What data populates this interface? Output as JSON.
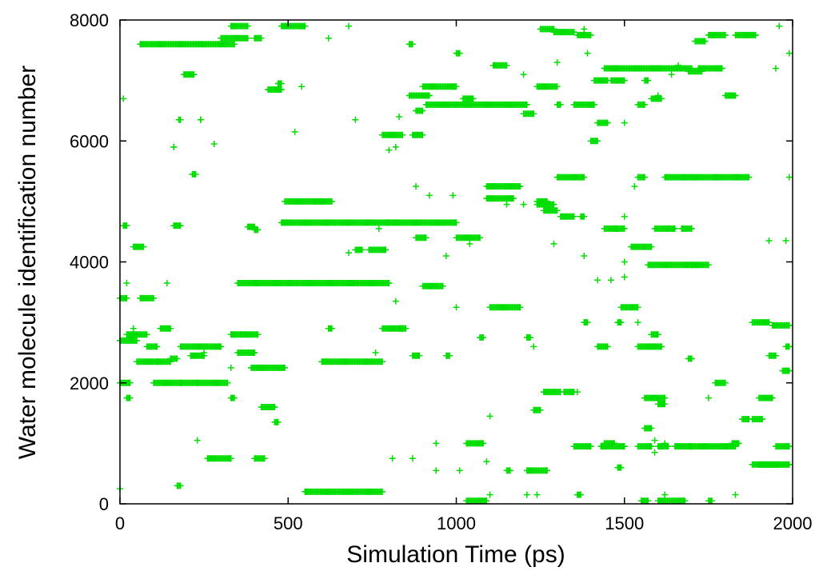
{
  "chart_data": {
    "type": "scatter",
    "title": "",
    "xlabel": "Simulation Time (ps)",
    "ylabel": "Water molecule identification number",
    "xlim": [
      0,
      2000
    ],
    "ylim": [
      0,
      8000
    ],
    "xticks": [
      0,
      500,
      1000,
      1500,
      2000
    ],
    "yticks": [
      0,
      2000,
      4000,
      6000,
      8000
    ],
    "grid": false,
    "legend": "none",
    "marker": "+",
    "color": "#00dd00",
    "segments": [
      [
        60,
        340,
        7600
      ],
      [
        300,
        380,
        7700
      ],
      [
        330,
        380,
        7900
      ],
      [
        480,
        550,
        7900
      ],
      [
        190,
        220,
        7100
      ],
      [
        400,
        420,
        7700
      ],
      [
        440,
        480,
        6850
      ],
      [
        470,
        480,
        6950
      ],
      [
        860,
        920,
        6750
      ],
      [
        880,
        900,
        6500
      ],
      [
        900,
        1000,
        6900
      ],
      [
        910,
        1000,
        6600
      ],
      [
        1000,
        1210,
        6600
      ],
      [
        1020,
        1050,
        6700
      ],
      [
        1200,
        1230,
        6450
      ],
      [
        780,
        840,
        6100
      ],
      [
        870,
        900,
        6100
      ],
      [
        175,
        180,
        6350
      ],
      [
        240,
        240,
        6350
      ],
      [
        160,
        160,
        5900
      ],
      [
        215,
        225,
        5450
      ],
      [
        10,
        20,
        4600
      ],
      [
        160,
        180,
        4600
      ],
      [
        40,
        70,
        4250
      ],
      [
        380,
        400,
        4580
      ],
      [
        400,
        410,
        4530
      ],
      [
        480,
        800,
        4650
      ],
      [
        490,
        580,
        5000
      ],
      [
        580,
        630,
        5000
      ],
      [
        700,
        720,
        4200
      ],
      [
        740,
        790,
        4200
      ],
      [
        800,
        1000,
        4650
      ],
      [
        880,
        910,
        4400
      ],
      [
        1000,
        1070,
        4400
      ],
      [
        1090,
        1190,
        5250
      ],
      [
        1090,
        1170,
        5050
      ],
      [
        1240,
        1270,
        5000
      ],
      [
        1240,
        1290,
        4950
      ],
      [
        1260,
        1300,
        4850
      ],
      [
        1310,
        1350,
        4750
      ],
      [
        1370,
        1380,
        4750
      ],
      [
        1300,
        1380,
        5400
      ],
      [
        1440,
        1480,
        4550
      ],
      [
        1470,
        1500,
        4550
      ],
      [
        1520,
        1560,
        4250
      ],
      [
        1590,
        1630,
        4550
      ],
      [
        1670,
        1700,
        4550
      ],
      [
        1570,
        1700,
        3950
      ],
      [
        1700,
        1750,
        3950
      ],
      [
        1620,
        1700,
        5400
      ],
      [
        1700,
        1870,
        5400
      ],
      [
        1400,
        1420,
        6000
      ],
      [
        1420,
        1450,
        6300
      ],
      [
        1410,
        1450,
        7000
      ],
      [
        1460,
        1500,
        7000
      ],
      [
        1440,
        1590,
        7200
      ],
      [
        1580,
        1700,
        7200
      ],
      [
        1690,
        1730,
        7150
      ],
      [
        1720,
        1790,
        7200
      ],
      [
        1800,
        1830,
        6750
      ],
      [
        1830,
        1890,
        7750
      ],
      [
        1710,
        1740,
        7650
      ],
      [
        1750,
        1800,
        7750
      ],
      [
        1250,
        1290,
        7850
      ],
      [
        1290,
        1350,
        7800
      ],
      [
        1360,
        1400,
        7750
      ],
      [
        1240,
        1300,
        6900
      ],
      [
        1350,
        1410,
        6600
      ],
      [
        1300,
        1310,
        6600
      ],
      [
        1110,
        1150,
        7250
      ],
      [
        1000,
        1010,
        7450
      ],
      [
        860,
        870,
        7600
      ],
      [
        1560,
        1570,
        7000
      ],
      [
        1580,
        1610,
        6700
      ],
      [
        1540,
        1560,
        6600
      ],
      [
        1540,
        1560,
        5400
      ],
      [
        1560,
        1580,
        4250
      ],
      [
        1630,
        1650,
        4550
      ],
      [
        0,
        20,
        3400
      ],
      [
        60,
        100,
        3400
      ],
      [
        350,
        500,
        3650
      ],
      [
        500,
        800,
        3650
      ],
      [
        900,
        960,
        3600
      ],
      [
        1100,
        1190,
        3250
      ],
      [
        1490,
        1540,
        3250
      ],
      [
        1380,
        1390,
        3000
      ],
      [
        780,
        840,
        2900
      ],
      [
        830,
        850,
        2900
      ],
      [
        970,
        980,
        2450
      ],
      [
        20,
        80,
        2800
      ],
      [
        0,
        50,
        2700
      ],
      [
        80,
        110,
        2600
      ],
      [
        50,
        110,
        2350
      ],
      [
        110,
        150,
        2350
      ],
      [
        120,
        150,
        2900
      ],
      [
        180,
        300,
        2600
      ],
      [
        210,
        250,
        2450
      ],
      [
        150,
        170,
        2400
      ],
      [
        350,
        400,
        2500
      ],
      [
        330,
        360,
        2800
      ],
      [
        360,
        410,
        2800
      ],
      [
        390,
        490,
        2250
      ],
      [
        600,
        780,
        2350
      ],
      [
        620,
        630,
        2900
      ],
      [
        870,
        890,
        2450
      ],
      [
        1210,
        1220,
        2750
      ],
      [
        1070,
        1080,
        2750
      ],
      [
        1420,
        1450,
        2600
      ],
      [
        1540,
        1610,
        2600
      ],
      [
        1580,
        1600,
        2800
      ],
      [
        1480,
        1490,
        3000
      ],
      [
        1690,
        1700,
        2400
      ],
      [
        1880,
        1930,
        3000
      ],
      [
        1940,
        1990,
        2950
      ],
      [
        1930,
        1950,
        2450
      ],
      [
        1970,
        1990,
        2200
      ],
      [
        1980,
        1990,
        2600
      ],
      [
        0,
        30,
        2000
      ],
      [
        100,
        180,
        2000
      ],
      [
        180,
        230,
        2000
      ],
      [
        230,
        320,
        2000
      ],
      [
        20,
        30,
        1750
      ],
      [
        330,
        340,
        1750
      ],
      [
        420,
        460,
        1600
      ],
      [
        460,
        470,
        1350
      ],
      [
        1260,
        1310,
        1850
      ],
      [
        1320,
        1350,
        1850
      ],
      [
        1230,
        1250,
        1550
      ],
      [
        1560,
        1620,
        1750
      ],
      [
        1600,
        1620,
        1650
      ],
      [
        1770,
        1800,
        2000
      ],
      [
        1900,
        1940,
        1750
      ],
      [
        1850,
        1870,
        1400
      ],
      [
        1880,
        1910,
        1400
      ],
      [
        1560,
        1580,
        1250
      ],
      [
        260,
        330,
        750
      ],
      [
        400,
        430,
        750
      ],
      [
        1030,
        1080,
        1000
      ],
      [
        1350,
        1400,
        950
      ],
      [
        1430,
        1500,
        950
      ],
      [
        1440,
        1470,
        1000
      ],
      [
        1540,
        1580,
        950
      ],
      [
        1600,
        1630,
        950
      ],
      [
        1650,
        1700,
        950
      ],
      [
        1690,
        1830,
        950
      ],
      [
        1820,
        1840,
        1000
      ],
      [
        1950,
        1990,
        950
      ],
      [
        1880,
        1990,
        650
      ],
      [
        1900,
        1960,
        650
      ],
      [
        1480,
        1490,
        600
      ],
      [
        1210,
        1270,
        550
      ],
      [
        1150,
        1160,
        550
      ],
      [
        170,
        180,
        300
      ],
      [
        550,
        780,
        200
      ],
      [
        1030,
        1090,
        50
      ],
      [
        1550,
        1570,
        50
      ],
      [
        1600,
        1680,
        50
      ],
      [
        1750,
        1760,
        50
      ],
      [
        1360,
        1370,
        150
      ]
    ],
    "isolated": [
      [
        0,
        250
      ],
      [
        10,
        6700
      ],
      [
        20,
        3650
      ],
      [
        40,
        2900
      ],
      [
        30,
        2750
      ],
      [
        140,
        3650
      ],
      [
        230,
        1050
      ],
      [
        330,
        2250
      ],
      [
        250,
        2500
      ],
      [
        280,
        5950
      ],
      [
        520,
        6150
      ],
      [
        540,
        6900
      ],
      [
        620,
        7700
      ],
      [
        680,
        7900
      ],
      [
        700,
        6350
      ],
      [
        770,
        4550
      ],
      [
        820,
        3350
      ],
      [
        800,
        5850
      ],
      [
        820,
        5900
      ],
      [
        830,
        6400
      ],
      [
        760,
        2500
      ],
      [
        680,
        4150
      ],
      [
        810,
        750
      ],
      [
        870,
        750
      ],
      [
        940,
        1000
      ],
      [
        940,
        550
      ],
      [
        1000,
        3250
      ],
      [
        970,
        4100
      ],
      [
        990,
        5100
      ],
      [
        920,
        5100
      ],
      [
        880,
        5250
      ],
      [
        1040,
        4300
      ],
      [
        1090,
        700
      ],
      [
        1100,
        1450
      ],
      [
        1010,
        550
      ],
      [
        1200,
        4950
      ],
      [
        1150,
        4950
      ],
      [
        1230,
        2600
      ],
      [
        1210,
        150
      ],
      [
        1240,
        150
      ],
      [
        1290,
        4300
      ],
      [
        1360,
        1850
      ],
      [
        1380,
        7850
      ],
      [
        1390,
        7450
      ],
      [
        1300,
        7300
      ],
      [
        1200,
        7100
      ],
      [
        1420,
        3700
      ],
      [
        1460,
        3700
      ],
      [
        1500,
        3750
      ],
      [
        1500,
        4000
      ],
      [
        1500,
        4750
      ],
      [
        1500,
        6300
      ],
      [
        1530,
        5250
      ],
      [
        1540,
        3000
      ],
      [
        1600,
        6750
      ],
      [
        1640,
        7100
      ],
      [
        1660,
        7250
      ],
      [
        1750,
        1750
      ],
      [
        1830,
        150
      ],
      [
        1930,
        4350
      ],
      [
        1950,
        7200
      ],
      [
        1990,
        7450
      ],
      [
        1990,
        5400
      ],
      [
        1980,
        4350
      ],
      [
        1960,
        7900
      ],
      [
        1590,
        850
      ],
      [
        1590,
        1050
      ],
      [
        1620,
        150
      ],
      [
        1620,
        1000
      ],
      [
        1290,
        1850
      ],
      [
        1100,
        150
      ],
      [
        1380,
        4100
      ]
    ]
  }
}
